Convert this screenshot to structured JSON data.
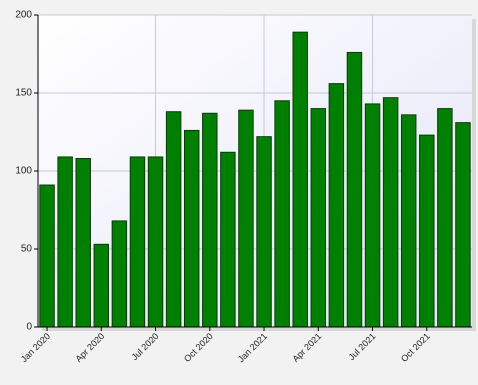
{
  "chart_data": {
    "type": "bar",
    "categories": [
      "Jan 2020",
      null,
      null,
      "Apr 2020",
      null,
      null,
      "Jul 2020",
      null,
      null,
      "Oct 2020",
      null,
      null,
      "Jan 2021",
      null,
      null,
      "Apr 2021",
      null,
      null,
      "Jul 2021",
      null,
      null,
      "Oct 2021",
      null,
      null
    ],
    "values": [
      91,
      109,
      108,
      53,
      68,
      109,
      109,
      138,
      126,
      137,
      112,
      139,
      122,
      145,
      189,
      140,
      156,
      176,
      143,
      147,
      136,
      123,
      140,
      131
    ],
    "color": "#008000",
    "ylim": [
      0,
      200
    ],
    "yticks": [
      0,
      50,
      100,
      150,
      200
    ],
    "grid": true
  }
}
